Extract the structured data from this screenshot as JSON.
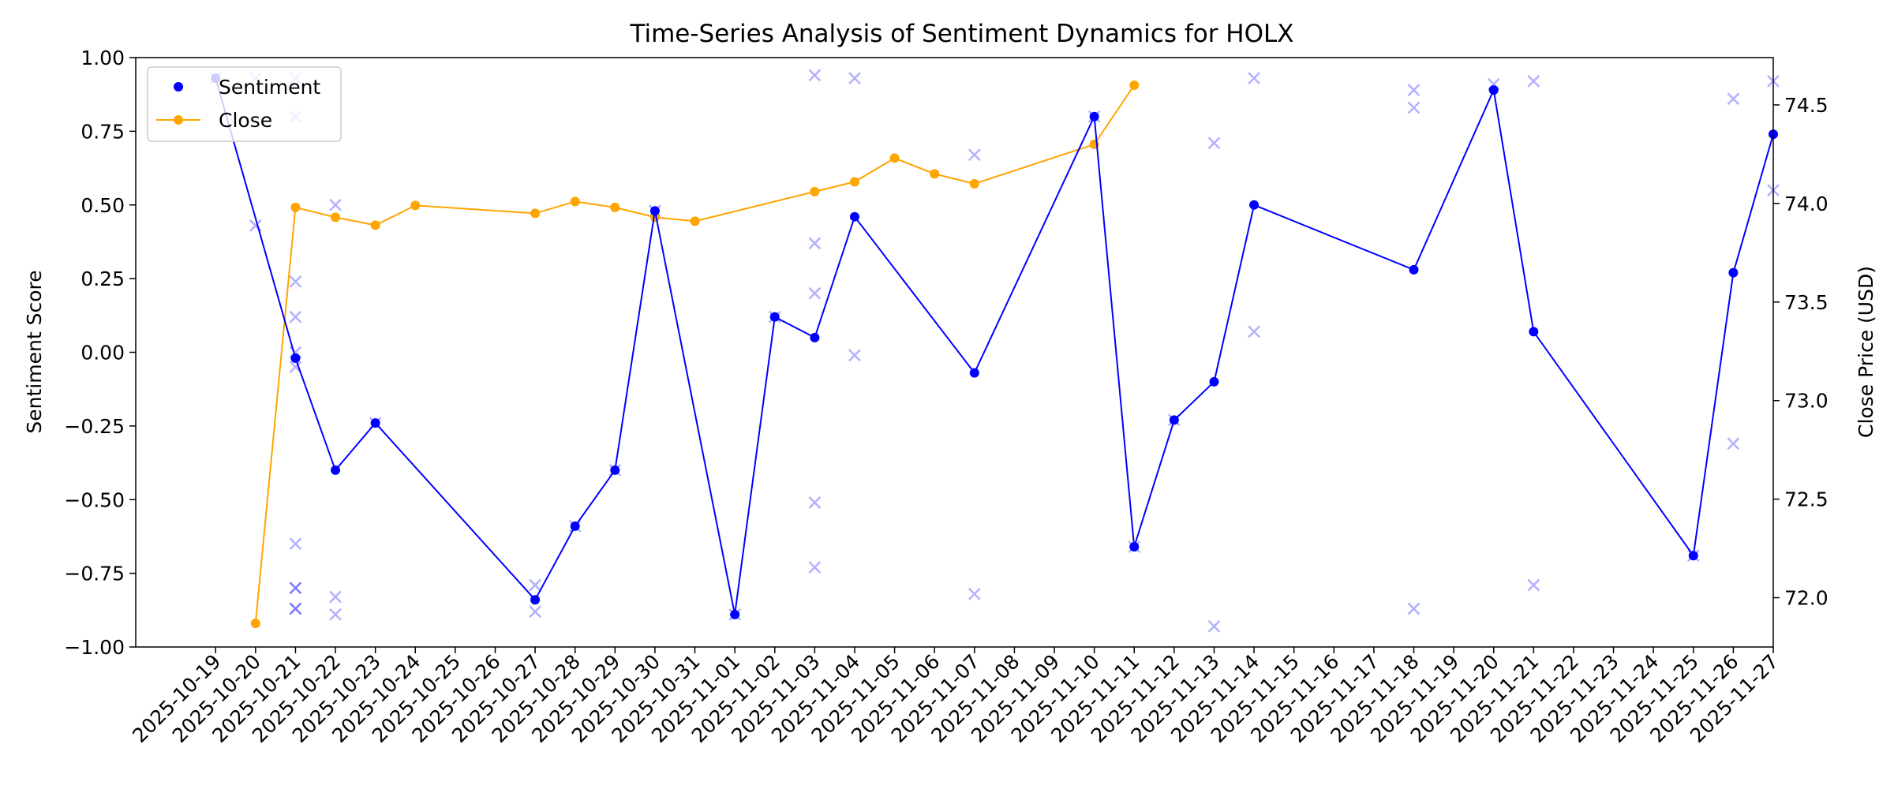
{
  "colors": {
    "sentiment": "#0000ff",
    "close": "#ffa500",
    "raw": "#0000ff"
  },
  "chart_data": {
    "type": "line",
    "title": "Time-Series Analysis of Sentiment Dynamics for HOLX",
    "ylabel": "Sentiment Score",
    "y2label": "Close Price (USD)",
    "ylim": [
      -1.0,
      1.0
    ],
    "y2lim": [
      71.75,
      74.74
    ],
    "yticks": [
      "1.00",
      "0.75",
      "0.50",
      "0.25",
      "0.00",
      "−0.25",
      "−0.50",
      "−0.75",
      "−1.00"
    ],
    "yticks_values": [
      1.0,
      0.75,
      0.5,
      0.25,
      0.0,
      -0.25,
      -0.5,
      -0.75,
      -1.0
    ],
    "y2ticks": [
      "74.5",
      "74.0",
      "73.5",
      "73.0",
      "72.5",
      "72.0"
    ],
    "y2ticks_values": [
      74.5,
      74.0,
      73.5,
      73.0,
      72.5,
      72.0
    ],
    "xlim": [
      "2025-10-17",
      "2025-11-27"
    ],
    "x_ticks": [
      "2025-10-19",
      "2025-10-20",
      "2025-10-21",
      "2025-10-22",
      "2025-10-23",
      "2025-10-24",
      "2025-10-25",
      "2025-10-26",
      "2025-10-27",
      "2025-10-28",
      "2025-10-29",
      "2025-10-30",
      "2025-10-31",
      "2025-11-01",
      "2025-11-02",
      "2025-11-03",
      "2025-11-04",
      "2025-11-05",
      "2025-11-06",
      "2025-11-07",
      "2025-11-08",
      "2025-11-09",
      "2025-11-10",
      "2025-11-11",
      "2025-11-12",
      "2025-11-13",
      "2025-11-14",
      "2025-11-15",
      "2025-11-16",
      "2025-11-17",
      "2025-11-18",
      "2025-11-19",
      "2025-11-20",
      "2025-11-21",
      "2025-11-22",
      "2025-11-23",
      "2025-11-24",
      "2025-11-25",
      "2025-11-26",
      "2025-11-27"
    ],
    "legend": {
      "placement": "upper-left",
      "entries": [
        "Sentiment",
        "Close"
      ]
    },
    "grid": false,
    "series": [
      {
        "name": "Sentiment",
        "axis": "left",
        "marker": "dot",
        "x": [
          "2025-10-19",
          "2025-10-21",
          "2025-10-22",
          "2025-10-23",
          "2025-10-27",
          "2025-10-28",
          "2025-10-29",
          "2025-10-30",
          "2025-11-01",
          "2025-11-02",
          "2025-11-03",
          "2025-11-04",
          "2025-11-07",
          "2025-11-10",
          "2025-11-11",
          "2025-11-12",
          "2025-11-13",
          "2025-11-14",
          "2025-11-18",
          "2025-11-20",
          "2025-11-21",
          "2025-11-25",
          "2025-11-26",
          "2025-11-27"
        ],
        "values": [
          0.93,
          -0.02,
          -0.4,
          -0.24,
          -0.84,
          -0.59,
          -0.4,
          0.48,
          -0.89,
          0.12,
          0.05,
          0.46,
          -0.07,
          0.8,
          -0.66,
          -0.23,
          -0.1,
          0.5,
          0.28,
          0.89,
          0.07,
          -0.69,
          0.27,
          0.74
        ]
      },
      {
        "name": "Close",
        "axis": "right",
        "marker": "dot",
        "x": [
          "2025-10-20",
          "2025-10-21",
          "2025-10-22",
          "2025-10-23",
          "2025-10-24",
          "2025-10-27",
          "2025-10-28",
          "2025-10-29",
          "2025-10-30",
          "2025-10-31",
          "2025-11-03",
          "2025-11-04",
          "2025-11-05",
          "2025-11-06",
          "2025-11-07",
          "2025-11-10",
          "2025-11-11"
        ],
        "values": [
          71.87,
          73.98,
          73.93,
          73.89,
          73.99,
          73.95,
          74.01,
          73.98,
          73.93,
          73.91,
          74.06,
          74.11,
          74.23,
          74.15,
          74.1,
          74.3,
          74.6
        ]
      }
    ],
    "raw_points": {
      "marker": "x",
      "axis": "left",
      "points": [
        [
          "2025-10-19",
          0.93
        ],
        [
          "2025-10-20",
          0.43
        ],
        [
          "2025-10-20",
          0.93
        ],
        [
          "2025-10-21",
          0.93
        ],
        [
          "2025-10-21",
          0.8
        ],
        [
          "2025-10-21",
          0.24
        ],
        [
          "2025-10-21",
          0.12
        ],
        [
          "2025-10-21",
          0.0
        ],
        [
          "2025-10-21",
          -0.05
        ],
        [
          "2025-10-21",
          -0.65
        ],
        [
          "2025-10-21",
          -0.8
        ],
        [
          "2025-10-21",
          -0.8
        ],
        [
          "2025-10-21",
          -0.87
        ],
        [
          "2025-10-21",
          -0.87
        ],
        [
          "2025-10-22",
          0.5
        ],
        [
          "2025-10-22",
          -0.83
        ],
        [
          "2025-10-22",
          -0.89
        ],
        [
          "2025-10-23",
          -0.24
        ],
        [
          "2025-10-27",
          -0.79
        ],
        [
          "2025-10-27",
          -0.88
        ],
        [
          "2025-10-28",
          -0.59
        ],
        [
          "2025-10-29",
          -0.4
        ],
        [
          "2025-10-30",
          0.48
        ],
        [
          "2025-11-01",
          -0.89
        ],
        [
          "2025-11-02",
          0.12
        ],
        [
          "2025-11-03",
          0.94
        ],
        [
          "2025-11-03",
          0.37
        ],
        [
          "2025-11-03",
          0.2
        ],
        [
          "2025-11-03",
          -0.51
        ],
        [
          "2025-11-03",
          -0.73
        ],
        [
          "2025-11-04",
          0.93
        ],
        [
          "2025-11-04",
          -0.01
        ],
        [
          "2025-11-07",
          0.67
        ],
        [
          "2025-11-07",
          -0.82
        ],
        [
          "2025-11-10",
          0.8
        ],
        [
          "2025-11-11",
          -0.66
        ],
        [
          "2025-11-12",
          -0.23
        ],
        [
          "2025-11-13",
          0.71
        ],
        [
          "2025-11-13",
          -0.93
        ],
        [
          "2025-11-14",
          0.93
        ],
        [
          "2025-11-14",
          0.07
        ],
        [
          "2025-11-18",
          0.89
        ],
        [
          "2025-11-18",
          0.83
        ],
        [
          "2025-11-18",
          -0.87
        ],
        [
          "2025-11-20",
          0.91
        ],
        [
          "2025-11-21",
          0.92
        ],
        [
          "2025-11-21",
          -0.79
        ],
        [
          "2025-11-25",
          -0.69
        ],
        [
          "2025-11-26",
          0.86
        ],
        [
          "2025-11-26",
          -0.31
        ],
        [
          "2025-11-27",
          0.92
        ],
        [
          "2025-11-27",
          0.55
        ]
      ]
    }
  }
}
